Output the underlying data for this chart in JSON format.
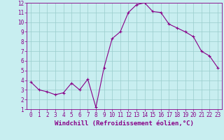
{
  "x": [
    0,
    1,
    2,
    3,
    4,
    5,
    6,
    7,
    8,
    9,
    10,
    11,
    12,
    13,
    14,
    15,
    16,
    17,
    18,
    19,
    20,
    21,
    22,
    23
  ],
  "y": [
    3.8,
    3.0,
    2.8,
    2.5,
    2.7,
    3.7,
    3.0,
    4.1,
    1.2,
    5.3,
    8.3,
    9.0,
    11.0,
    11.8,
    12.0,
    11.1,
    11.0,
    9.8,
    9.4,
    9.0,
    8.5,
    7.0,
    6.5,
    5.3
  ],
  "line_color": "#880088",
  "marker": "+",
  "marker_size": 3,
  "marker_lw": 0.8,
  "bg_color": "#c8eef0",
  "grid_color": "#99cccc",
  "xlabel": "Windchill (Refroidissement éolien,°C)",
  "xlim": [
    -0.5,
    23.5
  ],
  "ylim": [
    1,
    12
  ],
  "yticks": [
    1,
    2,
    3,
    4,
    5,
    6,
    7,
    8,
    9,
    10,
    11,
    12
  ],
  "xticks": [
    0,
    1,
    2,
    3,
    4,
    5,
    6,
    7,
    8,
    9,
    10,
    11,
    12,
    13,
    14,
    15,
    16,
    17,
    18,
    19,
    20,
    21,
    22,
    23
  ],
  "xlabel_fontsize": 6.5,
  "tick_fontsize": 5.5,
  "line_width": 0.8,
  "axis_label_color": "#880088",
  "spine_color": "#880088"
}
